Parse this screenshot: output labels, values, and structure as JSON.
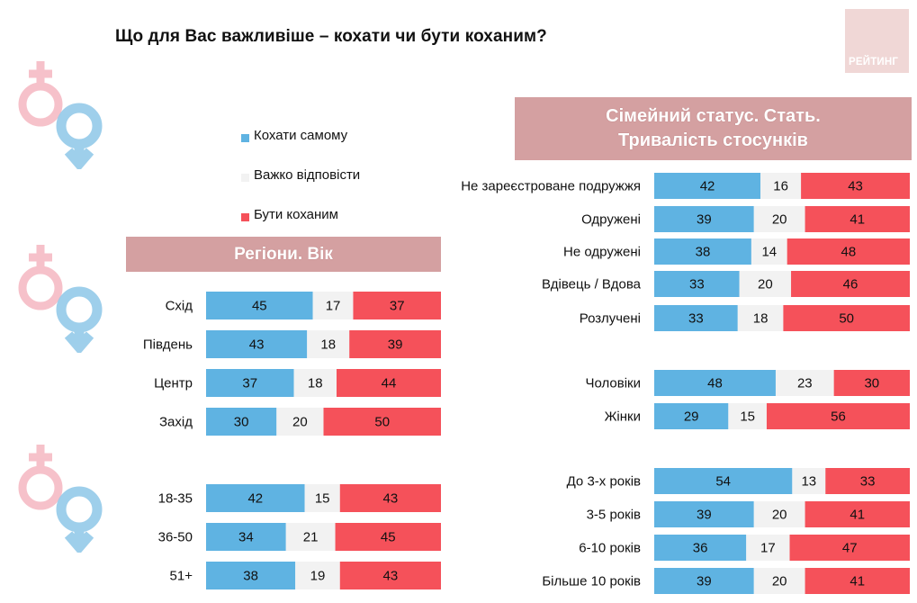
{
  "title": "Що для Вас важливіше – кохати чи бути коханим?",
  "logo_text": "РЕЙТИНГ",
  "colors": {
    "love_self": "#5fb3e2",
    "hard_to_say": "#f2f2f2",
    "be_loved": "#f5515a",
    "header_bg": "#d4a0a1",
    "logo_bg": "#f0d7d6"
  },
  "legend": [
    {
      "label": "Кохати самому",
      "color": "#5fb3e2"
    },
    {
      "label": "Важко відповісти",
      "color": "#f2f2f2"
    },
    {
      "label": "Бути коханим",
      "color": "#f5515a"
    }
  ],
  "left_header": "Регіони. Вік",
  "right_header_line1": "Сімейний статус. Стать.",
  "right_header_line2": "Тривалість стосунків",
  "chart_data": [
    {
      "type": "bar",
      "stacked": true,
      "orientation": "horizontal",
      "title": "Регіони. Вік",
      "series_names": [
        "Кохати самому",
        "Важко відповісти",
        "Бути коханим"
      ],
      "groups": [
        {
          "rows": [
            {
              "label": "Схід",
              "values": [
                45,
                17,
                37
              ]
            },
            {
              "label": "Південь",
              "values": [
                43,
                18,
                39
              ]
            },
            {
              "label": "Центр",
              "values": [
                37,
                18,
                44
              ]
            },
            {
              "label": "Захід",
              "values": [
                30,
                20,
                50
              ]
            }
          ]
        },
        {
          "rows": [
            {
              "label": "18-35",
              "values": [
                42,
                15,
                43
              ]
            },
            {
              "label": "36-50",
              "values": [
                34,
                21,
                45
              ]
            },
            {
              "label": "51+",
              "values": [
                38,
                19,
                43
              ]
            }
          ]
        }
      ]
    },
    {
      "type": "bar",
      "stacked": true,
      "orientation": "horizontal",
      "title": "Сімейний статус. Стать. Тривалість стосунків",
      "series_names": [
        "Кохати самому",
        "Важко відповісти",
        "Бути коханим"
      ],
      "groups": [
        {
          "rows": [
            {
              "label": "Не зареєстроване подружжя",
              "values": [
                42,
                16,
                43
              ]
            },
            {
              "label": "Одружені",
              "values": [
                39,
                20,
                41
              ]
            },
            {
              "label": "Не одружені",
              "values": [
                38,
                14,
                48
              ]
            },
            {
              "label": "Вдівець / Вдова",
              "values": [
                33,
                20,
                46
              ]
            },
            {
              "label": "Розлучені",
              "values": [
                33,
                18,
                50
              ]
            }
          ]
        },
        {
          "rows": [
            {
              "label": "Чоловіки",
              "values": [
                48,
                23,
                30
              ]
            },
            {
              "label": "Жінки",
              "values": [
                29,
                15,
                56
              ]
            }
          ]
        },
        {
          "rows": [
            {
              "label": "До 3-х років",
              "values": [
                54,
                13,
                33
              ]
            },
            {
              "label": "3-5 років",
              "values": [
                39,
                20,
                41
              ]
            },
            {
              "label": "6-10 років",
              "values": [
                36,
                17,
                47
              ]
            },
            {
              "label": "Більше 10 років",
              "values": [
                39,
                20,
                41
              ]
            }
          ]
        }
      ]
    }
  ]
}
